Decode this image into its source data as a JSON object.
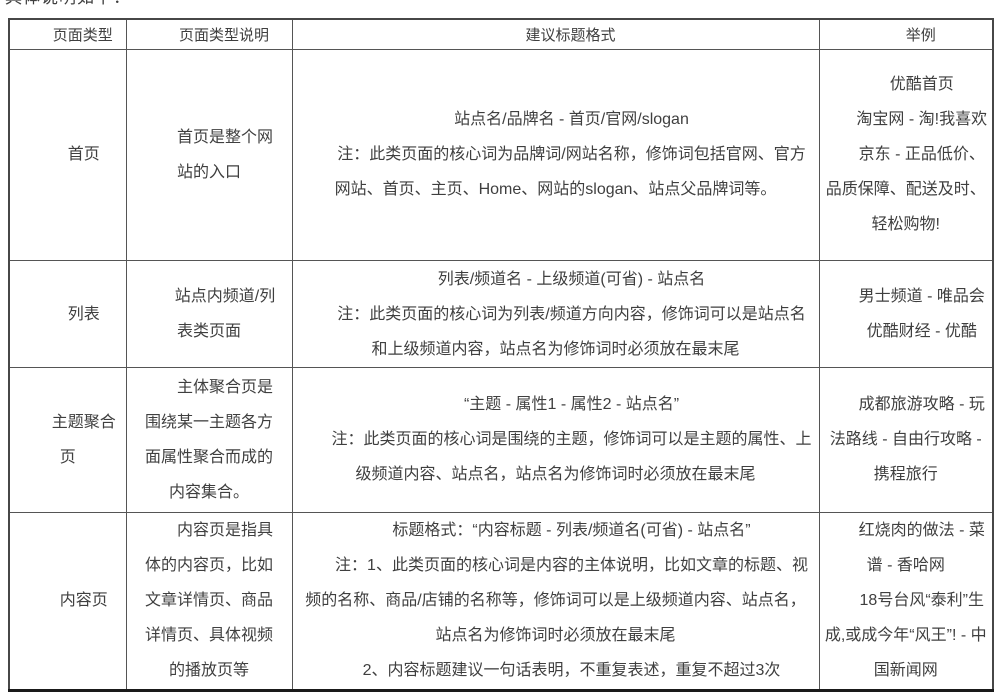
{
  "intro": {
    "clipped_line": "具体说明如下："
  },
  "colors": {
    "text": "#3f3f3f",
    "grid_border": "#555555",
    "outer_border": "#474747",
    "heavy_bottom_border": "#1a1a1a",
    "background": "#ffffff"
  },
  "table": {
    "headers": [
      "页面类型",
      "页面类型说明",
      "建议标题格式",
      "举例"
    ],
    "rows": [
      {
        "type": "首页",
        "description": [
          "首页是整个网站的入口"
        ],
        "format": [
          "站点名/品牌名 - 首页/官网/slogan",
          "注：此类页面的核心词为品牌词/网站名称，修饰词包括官网、官方网站、首页、主页、Home、网站的slogan、站点父品牌词等。"
        ],
        "examples": [
          "优酷首页",
          "淘宝网 - 淘!我喜欢",
          "京东 - 正品低价、品质保障、配送及时、轻松购物!"
        ]
      },
      {
        "type": "列表",
        "description": [
          "站点内频道/列表类页面"
        ],
        "format": [
          "列表/频道名 - 上级频道(可省) - 站点名",
          "注：此类页面的核心词为列表/频道方向内容，修饰词可以是站点名和上级频道内容，站点名为修饰词时必须放在最末尾"
        ],
        "examples": [
          "男士频道 - 唯品会",
          "优酷财经 - 优酷"
        ]
      },
      {
        "type": "主题聚合页",
        "description": [
          "主体聚合页是围绕某一主题各方面属性聚合而成的内容集合。"
        ],
        "format": [
          "“主题 - 属性1 - 属性2 - 站点名”",
          "注：此类页面的核心词是围绕的主题，修饰词可以是主题的属性、上级频道内容、站点名，站点名为修饰词时必须放在最末尾"
        ],
        "examples": [
          "成都旅游攻略 - 玩法路线 - 自由行攻略 - 携程旅行"
        ]
      },
      {
        "type": "内容页",
        "description": [
          "内容页是指具体的内容页，比如文章详情页、商品详情页、具体视频的播放页等"
        ],
        "format": [
          "标题格式：“内容标题 - 列表/频道名(可省) - 站点名”",
          "注：1、此类页面的核心词是内容的主体说明，比如文章的标题、视频的名称、商品/店铺的名称等，修饰词可以是上级频道内容、站点名，站点名为修饰词时必须放在最末尾",
          "2、内容标题建议一句话表明，不重复表述，重复不超过3次"
        ],
        "examples": [
          "红烧肉的做法 - 菜谱 - 香哈网",
          "18号台风“泰利”生成,或成今年“风王”! - 中国新闻网"
        ]
      }
    ]
  }
}
